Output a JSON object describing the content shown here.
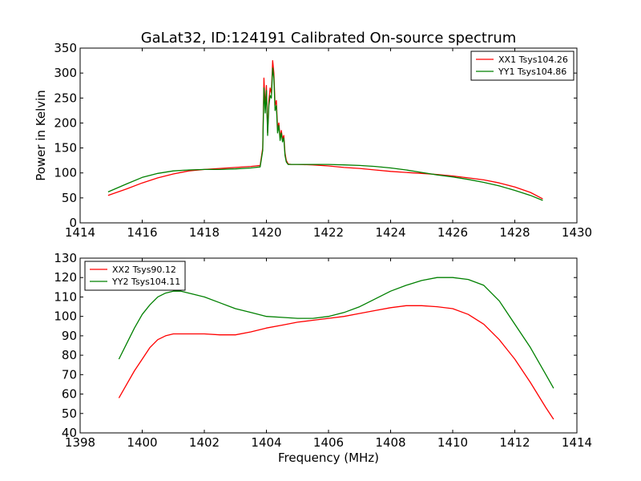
{
  "figure": {
    "title": "GaLat32, ID:124191 Calibrated On-source spectrum"
  },
  "colors": {
    "red": "#ff0000",
    "green": "#008000"
  },
  "chart_data": [
    {
      "type": "line",
      "title": "GaLat32, ID:124191 Calibrated On-source spectrum",
      "xlabel": "",
      "ylabel": "Power in Kelvin",
      "xlim": [
        1414,
        1430
      ],
      "ylim": [
        0,
        350
      ],
      "xticks": [
        1414,
        1416,
        1418,
        1420,
        1422,
        1424,
        1426,
        1428,
        1430
      ],
      "yticks": [
        0,
        50,
        100,
        150,
        200,
        250,
        300,
        350
      ],
      "legend": "top-right",
      "grid": false,
      "series": [
        {
          "name": "XX1 Tsys104.26",
          "color": "#ff0000",
          "x": [
            1414.9,
            1415.5,
            1416.0,
            1416.5,
            1417.0,
            1417.5,
            1418.0,
            1418.5,
            1419.0,
            1419.5,
            1419.8,
            1419.88,
            1419.92,
            1419.96,
            1420.0,
            1420.04,
            1420.08,
            1420.12,
            1420.16,
            1420.2,
            1420.24,
            1420.28,
            1420.32,
            1420.36,
            1420.4,
            1420.44,
            1420.48,
            1420.52,
            1420.56,
            1420.6,
            1420.64,
            1420.7,
            1420.8,
            1421.0,
            1421.5,
            1422.0,
            1422.5,
            1423.0,
            1423.5,
            1424.0,
            1424.5,
            1425.0,
            1425.5,
            1426.0,
            1426.5,
            1427.0,
            1427.5,
            1428.0,
            1428.5,
            1428.9
          ],
          "y": [
            55,
            68,
            80,
            90,
            98,
            104,
            107,
            109,
            111,
            113,
            115,
            150,
            290,
            230,
            275,
            180,
            245,
            270,
            260,
            325,
            300,
            235,
            245,
            190,
            200,
            170,
            185,
            168,
            175,
            140,
            125,
            118,
            117,
            117,
            116,
            114,
            111,
            109,
            106,
            103,
            101,
            99,
            97,
            94,
            90,
            86,
            80,
            72,
            61,
            48
          ]
        },
        {
          "name": "YY1 Tsys104.86",
          "color": "#008000",
          "x": [
            1414.9,
            1415.5,
            1416.0,
            1416.5,
            1417.0,
            1417.5,
            1418.0,
            1418.5,
            1419.0,
            1419.5,
            1419.8,
            1419.88,
            1419.92,
            1419.96,
            1420.0,
            1420.04,
            1420.08,
            1420.12,
            1420.16,
            1420.2,
            1420.24,
            1420.28,
            1420.32,
            1420.36,
            1420.4,
            1420.44,
            1420.48,
            1420.52,
            1420.56,
            1420.6,
            1420.64,
            1420.7,
            1420.8,
            1421.0,
            1421.5,
            1422.0,
            1422.5,
            1423.0,
            1423.5,
            1424.0,
            1424.5,
            1425.0,
            1425.5,
            1426.0,
            1426.5,
            1427.0,
            1427.5,
            1428.0,
            1428.5,
            1428.9
          ],
          "y": [
            62,
            78,
            91,
            99,
            104,
            106,
            107,
            107,
            108,
            110,
            112,
            145,
            270,
            220,
            265,
            175,
            235,
            255,
            250,
            310,
            290,
            225,
            235,
            180,
            195,
            165,
            180,
            162,
            170,
            135,
            122,
            117,
            117,
            117,
            117,
            117,
            116,
            115,
            113,
            110,
            106,
            101,
            96,
            92,
            87,
            81,
            74,
            65,
            55,
            45
          ]
        }
      ]
    },
    {
      "type": "line",
      "title": "",
      "xlabel": "Frequency (MHz)",
      "ylabel": "",
      "xlim": [
        1398,
        1414
      ],
      "ylim": [
        40,
        130
      ],
      "xticks": [
        1398,
        1400,
        1402,
        1404,
        1406,
        1408,
        1410,
        1412,
        1414
      ],
      "yticks": [
        40,
        50,
        60,
        70,
        80,
        90,
        100,
        110,
        120,
        130
      ],
      "legend": "top-left",
      "grid": false,
      "series": [
        {
          "name": "XX2 Tsys90.12",
          "color": "#ff0000",
          "x": [
            1399.25,
            1399.5,
            1399.75,
            1400.0,
            1400.25,
            1400.5,
            1400.75,
            1401.0,
            1401.25,
            1401.5,
            1401.75,
            1402.0,
            1402.5,
            1403.0,
            1403.5,
            1404.0,
            1404.5,
            1405.0,
            1405.5,
            1406.0,
            1406.5,
            1407.0,
            1407.5,
            1408.0,
            1408.5,
            1409.0,
            1409.5,
            1410.0,
            1410.5,
            1411.0,
            1411.5,
            1412.0,
            1412.5,
            1413.0,
            1413.25
          ],
          "y": [
            58,
            65,
            72,
            78,
            84,
            88,
            90,
            91,
            91,
            91,
            91,
            91,
            90.5,
            90.5,
            92,
            94,
            95.5,
            97,
            98,
            99,
            100,
            101.5,
            103,
            104.5,
            105.5,
            105.5,
            105,
            104,
            101,
            96,
            88,
            78,
            66,
            53,
            47
          ]
        },
        {
          "name": "YY2 Tsys104.11",
          "color": "#008000",
          "x": [
            1399.25,
            1399.5,
            1399.75,
            1400.0,
            1400.25,
            1400.5,
            1400.75,
            1401.0,
            1401.25,
            1401.5,
            1401.75,
            1402.0,
            1402.5,
            1403.0,
            1403.5,
            1404.0,
            1404.5,
            1405.0,
            1405.5,
            1406.0,
            1406.5,
            1407.0,
            1407.5,
            1408.0,
            1408.5,
            1409.0,
            1409.5,
            1410.0,
            1410.5,
            1411.0,
            1411.5,
            1412.0,
            1412.5,
            1413.0,
            1413.25
          ],
          "y": [
            78,
            86,
            94,
            101,
            106,
            110,
            112,
            113,
            113,
            112,
            111,
            110,
            107,
            104,
            102,
            100,
            99.5,
            99,
            99,
            100,
            102,
            105,
            109,
            113,
            116,
            118.5,
            120,
            120,
            119,
            116,
            108,
            96,
            84,
            70,
            63
          ]
        }
      ]
    }
  ]
}
